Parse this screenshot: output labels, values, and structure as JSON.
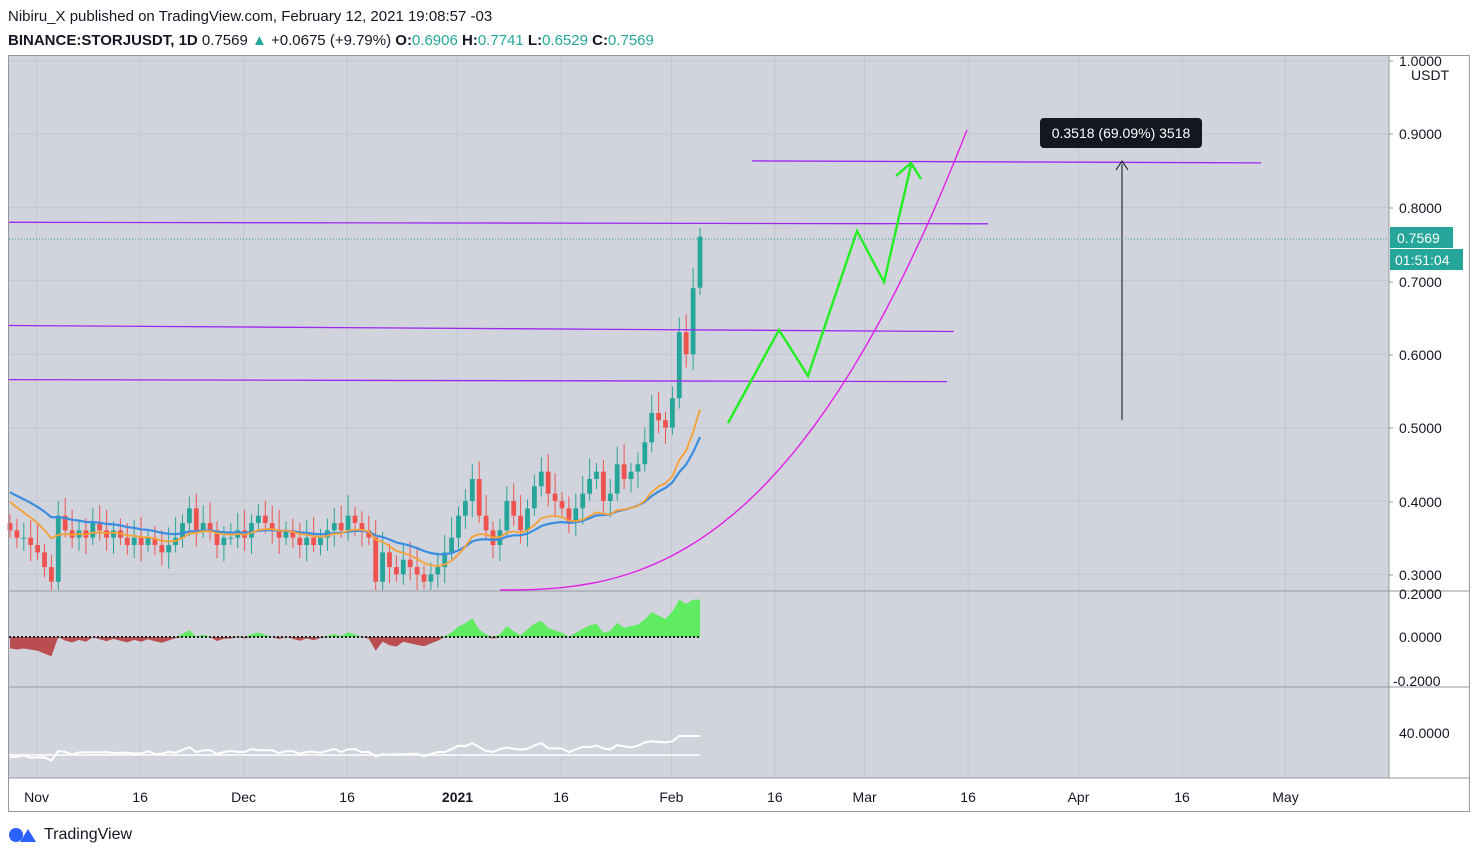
{
  "header": {
    "line1": "Nibiru_X published on TradingView.com, February 12, 2021 19:08:57 -03",
    "symbol": "BINANCE:STORJUSDT, 1D",
    "last": "0.7569",
    "change_arrow": "▲",
    "change": "+0.0675 (+9.79%)",
    "o_label": "O:",
    "o": "0.6906",
    "h_label": "H:",
    "h": "0.7741",
    "l_label": "L:",
    "l": "0.6529",
    "c_label": "C:",
    "c": "0.7569"
  },
  "colors": {
    "background": "#d1d4dc",
    "candle_up": "#26a69a",
    "candle_down": "#ef5350",
    "ema_fast": "#f7a035",
    "ema_slow": "#3b8de0",
    "levels": "#9c27f0",
    "projection": "#22ee22",
    "parabola": "#e020e8",
    "osc_positive": "#4cf04c",
    "osc_negative": "#b02020"
  },
  "chart_data": {
    "type": "candlestick",
    "price_axis": {
      "unit": "USDT",
      "ticks": [
        "1.0000",
        "0.9000",
        "0.8000",
        "0.7000",
        "0.6000",
        "0.5000",
        "0.4000",
        "0.3000"
      ],
      "ylim": [
        0.285,
        1.0
      ]
    },
    "time_axis": {
      "ticks": [
        "Nov",
        "16",
        "Dec",
        "16",
        "2021",
        "16",
        "Feb",
        "16",
        "Mar",
        "16",
        "Apr",
        "16",
        "May"
      ],
      "range": [
        "2020-10-28",
        "2021-05-25"
      ]
    },
    "last_price_label": "0.7569",
    "countdown_label": "01:51:04",
    "closes": [
      0.36,
      0.35,
      0.35,
      0.34,
      0.33,
      0.31,
      0.29,
      0.38,
      0.36,
      0.35,
      0.36,
      0.35,
      0.37,
      0.36,
      0.35,
      0.36,
      0.35,
      0.34,
      0.35,
      0.34,
      0.35,
      0.34,
      0.33,
      0.34,
      0.35,
      0.37,
      0.39,
      0.36,
      0.37,
      0.36,
      0.34,
      0.35,
      0.35,
      0.36,
      0.35,
      0.37,
      0.38,
      0.37,
      0.36,
      0.35,
      0.36,
      0.35,
      0.34,
      0.35,
      0.34,
      0.35,
      0.36,
      0.37,
      0.36,
      0.38,
      0.37,
      0.36,
      0.35,
      0.29,
      0.33,
      0.31,
      0.3,
      0.32,
      0.31,
      0.3,
      0.29,
      0.3,
      0.31,
      0.33,
      0.35,
      0.38,
      0.4,
      0.43,
      0.38,
      0.36,
      0.34,
      0.36,
      0.4,
      0.38,
      0.36,
      0.39,
      0.42,
      0.44,
      0.41,
      0.4,
      0.39,
      0.37,
      0.39,
      0.41,
      0.43,
      0.44,
      0.4,
      0.41,
      0.45,
      0.43,
      0.44,
      0.45,
      0.48,
      0.52,
      0.51,
      0.5,
      0.54,
      0.63,
      0.6,
      0.69,
      0.76
    ],
    "ema_fast_end": 0.525,
    "ema_slow_end": 0.487,
    "levels": [
      0.779,
      0.635,
      0.564,
      0.862
    ],
    "projection_path": [
      [
        "2021-02-13",
        0.515
      ],
      [
        "2021-02-18",
        0.63
      ],
      [
        "2021-02-23",
        0.57
      ],
      [
        "2021-02-29",
        0.77
      ],
      [
        "2021-03-04",
        0.7
      ],
      [
        "2021-03-09",
        0.86
      ]
    ],
    "measure": {
      "label": "0.3518 (69.09%) 3518",
      "from": 0.51,
      "to": 0.862
    },
    "oscillator": {
      "ticks": [
        "0.2000",
        "0.0000",
        "-0.2000"
      ],
      "ylim": [
        -0.2,
        0.2
      ]
    },
    "rsi": {
      "ticks": [
        "40.0000"
      ]
    }
  },
  "footer": {
    "brand": "TradingView"
  }
}
